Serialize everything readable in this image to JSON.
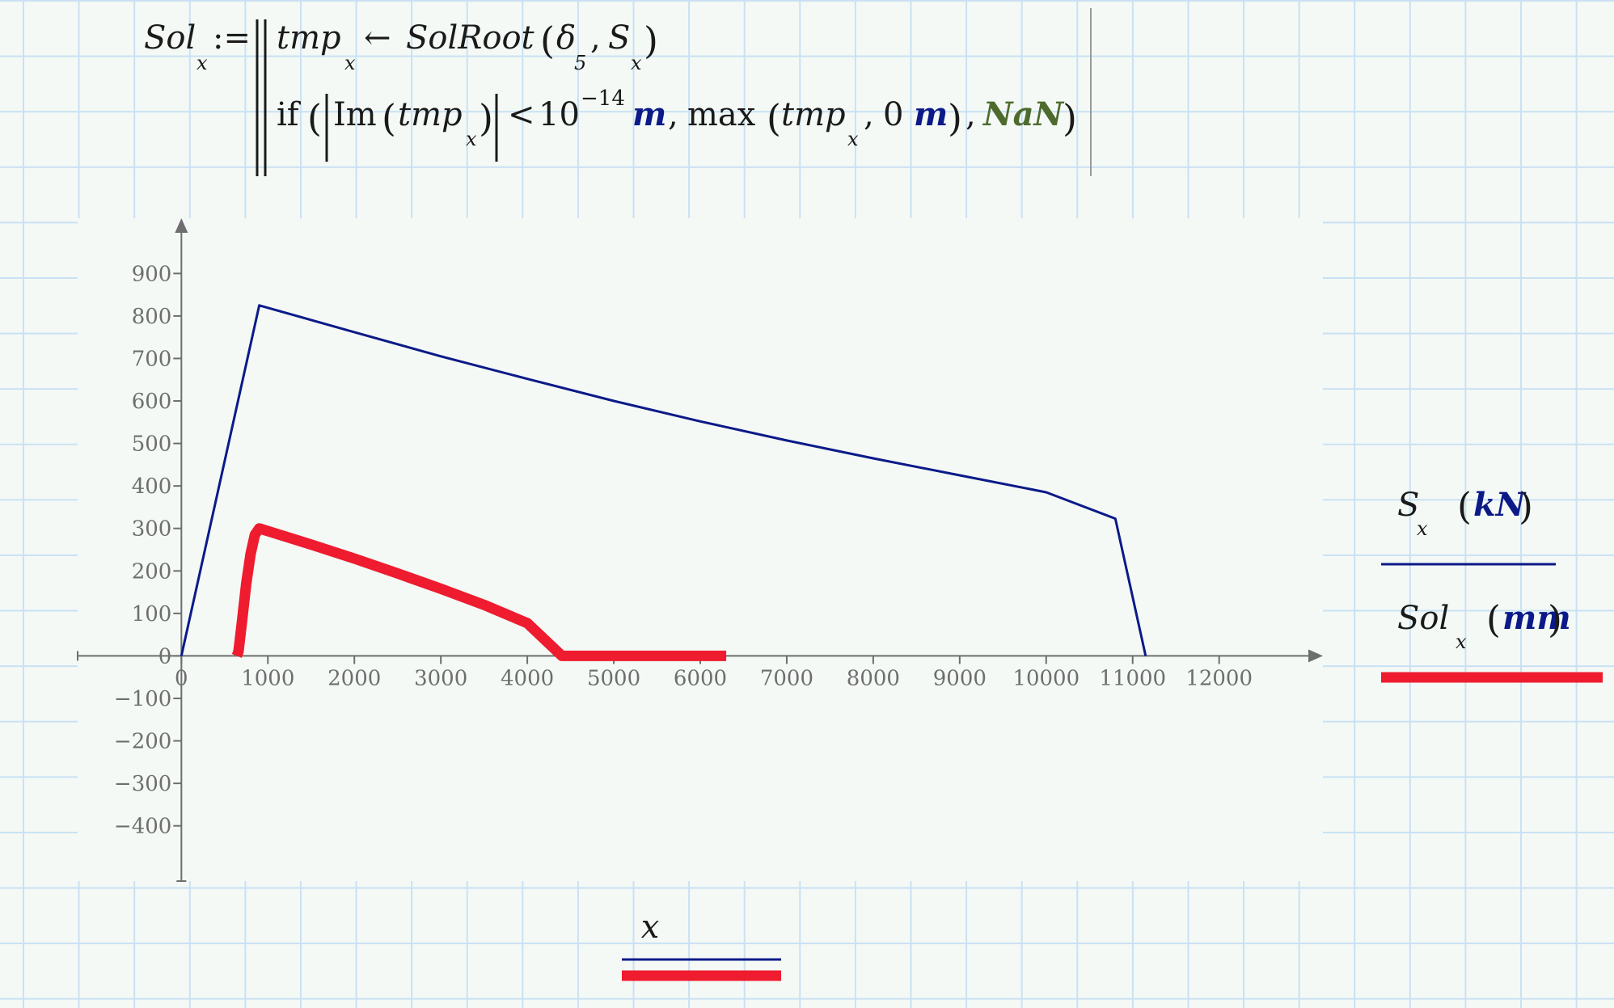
{
  "formula": {
    "lhs": "Sol",
    "lhs_sub": "x",
    "assign": ":=",
    "line1": {
      "var": "tmp",
      "var_sub": "x",
      "arrow": "←",
      "func": "SolRoot",
      "arg1": "δ",
      "arg1_sub": "5",
      "arg2": "S",
      "arg2_sub": "x"
    },
    "line2": {
      "kw": "if",
      "im": "Im",
      "var": "tmp",
      "var_sub": "x",
      "lt": "<",
      "base": "10",
      "exp": "−14",
      "unit": "m",
      "max": "max",
      "zero": "0",
      "unit2": "m",
      "nan": "NaN"
    }
  },
  "chart_data": {
    "type": "line",
    "xlabel": "x",
    "xlim": [
      -1200,
      13200
    ],
    "ylim": [
      -530,
      1030
    ],
    "x_ticks": [
      0,
      1000,
      2000,
      3000,
      4000,
      5000,
      6000,
      7000,
      8000,
      9000,
      10000,
      11000,
      12000
    ],
    "y_ticks": [
      -400,
      -300,
      -200,
      -100,
      0,
      100,
      200,
      300,
      400,
      500,
      600,
      700,
      800,
      900
    ],
    "series": [
      {
        "name": "S_x (kN)",
        "label": "S",
        "label_sub": "x",
        "unit": "kN",
        "color": "#0b1a88",
        "x": [
          0,
          900,
          2000,
          3000,
          4000,
          5000,
          6000,
          7000,
          8000,
          9000,
          10000,
          10800,
          11150
        ],
        "y": [
          0,
          825,
          762,
          705,
          652,
          600,
          552,
          507,
          465,
          425,
          385,
          323,
          0
        ]
      },
      {
        "name": "Sol_x (mm)",
        "label": "Sol",
        "label_sub": "x",
        "unit": "mm",
        "color": "#ee1c2e",
        "x": [
          640,
          660,
          700,
          750,
          800,
          850,
          900,
          1500,
          2000,
          2500,
          3000,
          3500,
          4000,
          4400,
          5000,
          5500,
          6000,
          6300
        ],
        "y": [
          0,
          10,
          80,
          170,
          240,
          285,
          300,
          262,
          229,
          194,
          158,
          120,
          77,
          0,
          0,
          0,
          0,
          0
        ]
      }
    ]
  }
}
